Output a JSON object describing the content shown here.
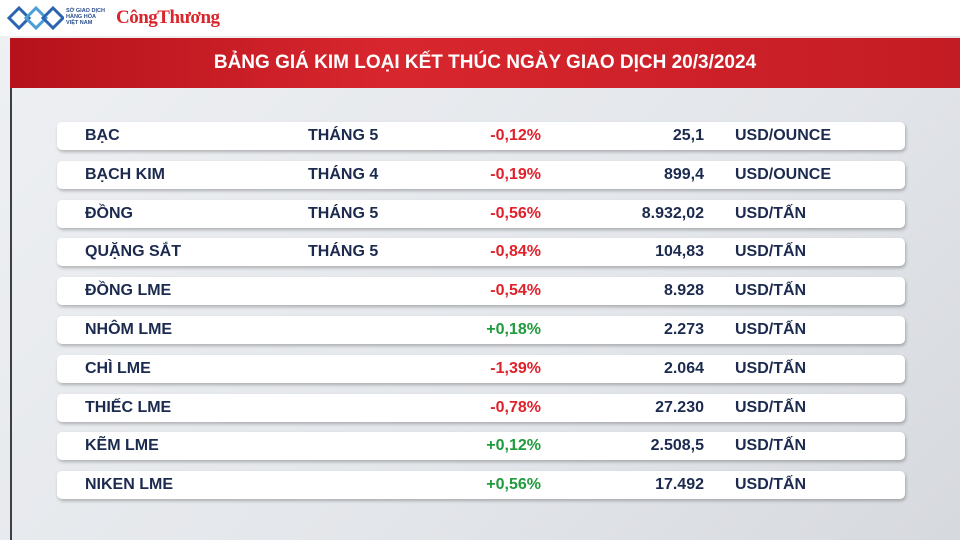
{
  "header": {
    "exchange_logo": [
      "SỞ GIAO DỊCH",
      "HÀNG HÓA",
      "VIỆT NAM"
    ],
    "brand": "CôngThương",
    "title": "BẢNG GIÁ KIM LOẠI KẾT THÚC NGÀY GIAO DỊCH 20/3/2024"
  },
  "table": {
    "rows": [
      {
        "name": "BẠC",
        "month": "THÁNG 5",
        "change": "-0,12%",
        "price": "25,1",
        "unit": "USD/OUNCE"
      },
      {
        "name": "BẠCH KIM",
        "month": "THÁNG 4",
        "change": "-0,19%",
        "price": "899,4",
        "unit": "USD/OUNCE"
      },
      {
        "name": "ĐỒNG",
        "month": "THÁNG 5",
        "change": "-0,56%",
        "price": "8.932,02",
        "unit": "USD/TẤN"
      },
      {
        "name": "QUẶNG SẮT",
        "month": "THÁNG 5",
        "change": "-0,84%",
        "price": "104,83",
        "unit": "USD/TẤN"
      },
      {
        "name": "ĐỒNG LME",
        "change": "-0,54%",
        "price": "8.928",
        "unit": "USD/TẤN"
      },
      {
        "name": "NHÔM LME",
        "change": "+0,18%",
        "price": "2.273",
        "unit": "USD/TẤN"
      },
      {
        "name": "CHÌ LME",
        "change": "-1,39%",
        "price": "2.064",
        "unit": "USD/TẤN"
      },
      {
        "name": "THIẾC LME",
        "change": "-0,78%",
        "price": "27.230",
        "unit": "USD/TẤN"
      },
      {
        "name": "KẼM LME",
        "change": "+0,12%",
        "price": "2.508,5",
        "unit": "USD/TẤN"
      },
      {
        "name": "NIKEN LME",
        "change": "+0,56%",
        "price": "17.492",
        "unit": "USD/TẤN"
      }
    ]
  }
}
